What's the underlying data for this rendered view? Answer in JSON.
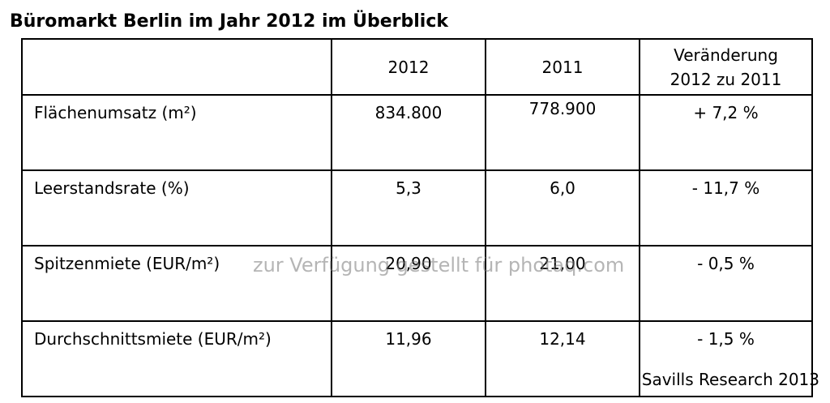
{
  "title": "Büromarkt Berlin im Jahr 2012 im Überblick",
  "table": {
    "headers": {
      "label": "",
      "col_2012": "2012",
      "col_2011": "2011",
      "change_line1": "Veränderung",
      "change_line2": "2012 zu 2011"
    },
    "rows": [
      {
        "label": "Flächenumsatz (m²)",
        "v2012": "834.800",
        "v2011": "778.900",
        "change": "+ 7,2 %"
      },
      {
        "label": "Leerstandsrate (%)",
        "v2012": "5,3",
        "v2011": "6,0",
        "change": "- 11,7 %"
      },
      {
        "label": "Spitzenmiete (EUR/m²)",
        "v2012": "20,90",
        "v2011": "21,00",
        "change": "- 0,5 %"
      },
      {
        "label": "Durchschnittsmiete (EUR/m²)",
        "v2012": "11,96",
        "v2011": "12,14",
        "change": "- 1,5 %"
      }
    ]
  },
  "watermark": "zur Verfügung gestellt für photaq.com",
  "source": "Savills Research 2013"
}
